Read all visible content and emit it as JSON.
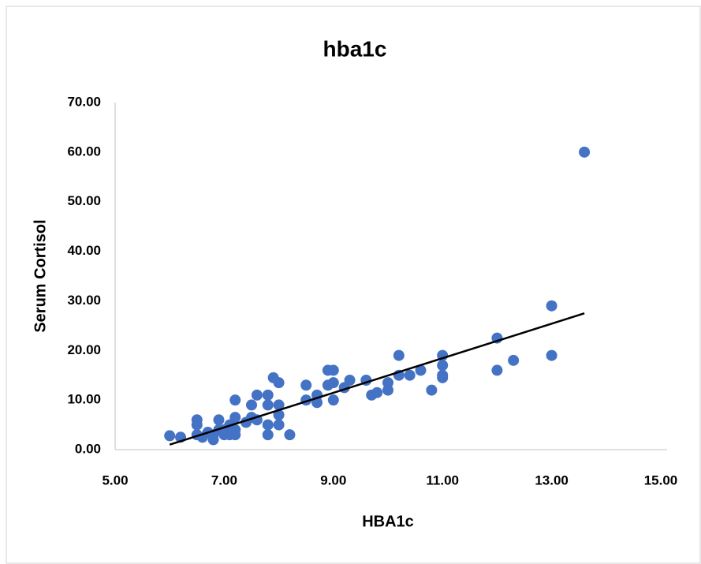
{
  "chart_data": {
    "type": "scatter",
    "title": "hba1c",
    "x_label": "HBA1c",
    "y_label": "Serum Cortisol",
    "series": [
      {
        "color": "#4472c4",
        "x": [
          6.0,
          6.2,
          6.5,
          6.5,
          6.5,
          6.6,
          6.7,
          6.8,
          6.8,
          6.9,
          6.9,
          7.0,
          7.0,
          7.1,
          7.1,
          7.2,
          7.2,
          7.2,
          7.2,
          7.4,
          7.5,
          7.5,
          7.6,
          7.6,
          7.8,
          7.8,
          7.8,
          7.8,
          7.9,
          8.0,
          8.0,
          8.0,
          8.0,
          8.2,
          8.5,
          8.5,
          8.7,
          8.7,
          8.9,
          8.9,
          9.0,
          9.0,
          9.0,
          9.2,
          9.3,
          9.6,
          9.7,
          9.8,
          10.0,
          10.0,
          10.2,
          10.2,
          10.4,
          10.6,
          10.8,
          11.0,
          11.0,
          11.0,
          11.0,
          12.0,
          12.0,
          12.3,
          13.0,
          13.0,
          13.6
        ],
        "values": [
          2.8,
          2.5,
          6,
          5,
          3,
          2.5,
          3.5,
          2,
          3,
          6,
          4,
          3,
          4,
          3,
          5,
          10,
          6.5,
          4,
          3,
          5.5,
          9,
          6.5,
          11,
          6,
          11,
          9,
          5,
          3,
          14.5,
          13.5,
          9,
          7,
          5,
          3,
          13,
          10,
          11,
          9.5,
          16,
          13,
          16,
          13.5,
          10,
          12.5,
          14,
          14,
          11,
          11.5,
          12,
          13.5,
          19,
          15,
          15,
          16,
          12,
          19,
          17,
          15,
          14.5,
          22.5,
          16,
          18,
          29,
          19,
          60
        ]
      }
    ],
    "trendline": {
      "color": "#000000",
      "x": [
        6.0,
        13.6
      ],
      "values": [
        1.0,
        27.5
      ]
    },
    "xlim": [
      5,
      15
    ],
    "xticks": [
      {
        "value": 5,
        "label": "5.00"
      },
      {
        "value": 7,
        "label": "7.00"
      },
      {
        "value": 9,
        "label": "9.00"
      },
      {
        "value": 11,
        "label": "11.00"
      },
      {
        "value": 13,
        "label": "13.00"
      },
      {
        "value": 15,
        "label": "15.00"
      }
    ],
    "ylim": [
      0,
      70
    ],
    "yticks": [
      {
        "value": 0,
        "label": "0.00"
      },
      {
        "value": 10,
        "label": "10.00"
      },
      {
        "value": 20,
        "label": "20.00"
      },
      {
        "value": 30,
        "label": "30.00"
      },
      {
        "value": 40,
        "label": "40.00"
      },
      {
        "value": 50,
        "label": "50.00"
      },
      {
        "value": 60,
        "label": "60.00"
      },
      {
        "value": 70,
        "label": "70.00"
      }
    ],
    "grid": false
  }
}
